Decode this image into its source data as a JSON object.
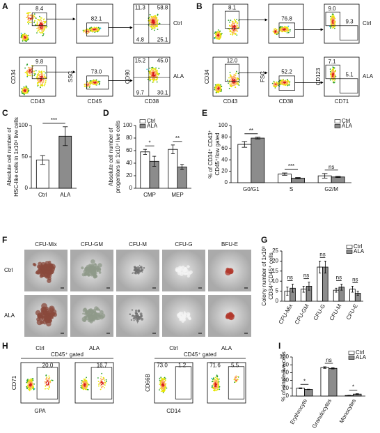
{
  "panel_labels": [
    "A",
    "B",
    "C",
    "D",
    "E",
    "F",
    "G",
    "H",
    "I"
  ],
  "flow_a": {
    "y_labels": [
      "CD34",
      "SSC",
      "CD90"
    ],
    "x_labels": [
      "CD43",
      "CD45",
      "CD38"
    ],
    "row_labels": [
      "Ctrl",
      "ALA"
    ],
    "gates": [
      [
        "8.4",
        "82.1",
        "11.3",
        "58.8",
        "4.8",
        "25.1"
      ],
      [
        "9.8",
        "73.0",
        "15.2",
        "45.0",
        "9.7",
        "30.1"
      ]
    ]
  },
  "flow_b": {
    "y_labels": [
      "CD34",
      "FSC",
      "CD123"
    ],
    "x_labels": [
      "CD43",
      "CD38",
      "CD71"
    ],
    "row_labels": [
      "Ctrl",
      "ALA"
    ],
    "gates": [
      [
        "8.1",
        "76.8",
        "9.0",
        "9.3"
      ],
      [
        "12.0",
        "52.2",
        "7.1",
        "5.1"
      ]
    ]
  },
  "colony_f": {
    "titles": [
      "CFU-Mix",
      "CFU-GM",
      "CFU-M",
      "CFU-G",
      "BFU-E"
    ],
    "row_labels": [
      "Ctrl",
      "ALA"
    ]
  },
  "flow_h": {
    "groups": [
      "Ctrl",
      "ALA",
      "Ctrl",
      "ALA"
    ],
    "gate_note": [
      "CD45⁺ gated",
      "CD45⁺ gated"
    ],
    "y_labels": [
      "CD71",
      "CD66B"
    ],
    "x_labels": [
      "GPA",
      "CD14"
    ],
    "gates": [
      [
        "20.0"
      ],
      [
        "16.7"
      ],
      [
        "73.0",
        "1.2"
      ],
      [
        "71.6",
        "5.5"
      ]
    ]
  },
  "chart_data": [
    {
      "type": "bar",
      "ylabel": [
        "Absolute cell number of",
        "HSC-like cells in 1x10⁴ live cells"
      ],
      "categories": [
        "Ctrl",
        "ALA"
      ],
      "values": [
        45,
        83
      ],
      "errors": [
        7,
        15
      ],
      "colors": [
        "#ffffff",
        "#8c8c8c"
      ],
      "ylim": [
        0,
        100
      ],
      "yticks": [
        0,
        50,
        100
      ],
      "annotations": [
        "***"
      ]
    },
    {
      "type": "bar",
      "ylabel": [
        "Absolute cell number of",
        "progenitors in 1x10⁴ live cells"
      ],
      "categories": [
        "CMP",
        "MEP"
      ],
      "series": [
        {
          "name": "Ctrl",
          "color": "#ffffff",
          "values": [
            58,
            62
          ],
          "errors": [
            4,
            7
          ]
        },
        {
          "name": "ALA",
          "color": "#8c8c8c",
          "values": [
            43,
            34
          ],
          "errors": [
            8,
            4
          ]
        }
      ],
      "ylim": [
        0,
        100
      ],
      "yticks": [
        0,
        20,
        40,
        60,
        80,
        100
      ],
      "annotations": [
        "*",
        "**"
      ],
      "legend": "upper left"
    },
    {
      "type": "bar",
      "ylabel": [
        "% of CD34⁺ CD43⁺",
        "CD45⁺/low gated"
      ],
      "categories": [
        "G0/G1",
        "S",
        "G2/M"
      ],
      "series": [
        {
          "name": "Ctrl",
          "color": "#ffffff",
          "values": [
            67,
            15,
            12
          ],
          "errors": [
            5,
            2,
            4
          ]
        },
        {
          "name": "ALA",
          "color": "#8c8c8c",
          "values": [
            78,
            8,
            10
          ],
          "errors": [
            1.5,
            1,
            1
          ]
        }
      ],
      "ylim": [
        0,
        100
      ],
      "yticks": [
        0,
        20,
        40,
        60,
        80,
        100
      ],
      "annotations": [
        "**",
        "***",
        "ns"
      ],
      "legend": "upper right"
    },
    {
      "type": "bar",
      "ylabel": [
        "Colony number of 1x10³",
        "CD34⁺CD45⁺ cells"
      ],
      "categories": [
        "CFU-Mix",
        "CFU-GM",
        "CFU-G",
        "CFU-M",
        "CFU-E"
      ],
      "series": [
        {
          "name": "Ctrl",
          "color": "#ffffff",
          "values": [
            5,
            6,
            17,
            5.5,
            6
          ],
          "errors": [
            2,
            1.5,
            3,
            1,
            1.5
          ]
        },
        {
          "name": "ALA",
          "color": "#8c8c8c",
          "values": [
            6.5,
            7.5,
            17,
            7,
            4
          ],
          "errors": [
            2,
            2,
            3,
            1.5,
            1
          ]
        }
      ],
      "ylim": [
        0,
        25
      ],
      "yticks": [
        0,
        5,
        10,
        15,
        20,
        25
      ],
      "annotations": [
        "ns",
        "ns",
        "ns",
        "ns",
        "ns"
      ],
      "legend": "upper right"
    },
    {
      "type": "bar",
      "ylabel": [
        "% of single live cells"
      ],
      "categories": [
        "Erythrocyte",
        "Granulocytes",
        "Monocytes"
      ],
      "series": [
        {
          "name": "Ctrl",
          "color": "#ffffff",
          "values": [
            20,
            73,
            1.5
          ],
          "errors": [
            1,
            2,
            0.5
          ]
        },
        {
          "name": "ALA",
          "color": "#8c8c8c",
          "values": [
            17,
            71,
            5
          ],
          "errors": [
            0.5,
            1.5,
            1
          ]
        }
      ],
      "ylim": [
        0,
        100
      ],
      "yticks": [
        0,
        20,
        40,
        60,
        80,
        100
      ],
      "annotations": [
        "*",
        "ns",
        "*"
      ],
      "legend": "upper right"
    }
  ]
}
